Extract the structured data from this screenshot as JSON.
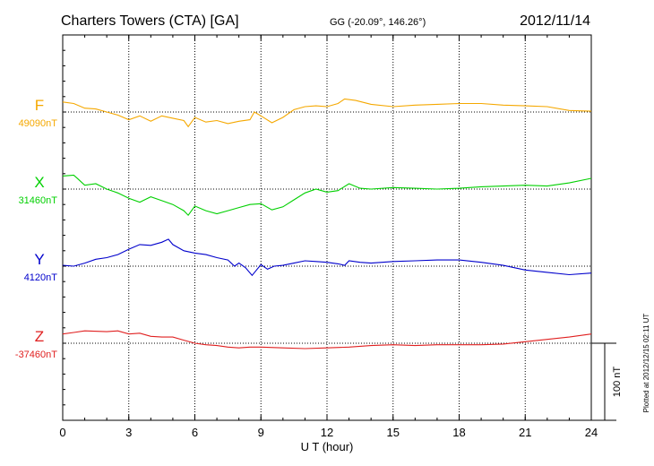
{
  "header": {
    "station": "Charters Towers (CTA)  [GA]",
    "coords": "GG (-20.09°, 146.26°)",
    "date": "2012/11/14"
  },
  "plotted_note": "Plotted at 2012/12/15 02:11  UT",
  "scale_label": "100 nT",
  "chart_data": {
    "type": "line",
    "xlabel": "U T (hour)",
    "xlim": [
      0,
      24
    ],
    "x_ticks": [
      "0",
      "3",
      "6",
      "9",
      "12",
      "15",
      "18",
      "21",
      "24"
    ],
    "scale_bar_nT": 100,
    "series": [
      {
        "name": "F",
        "baseline_label": "49090nT",
        "color": "#f5a800",
        "baseline_nT": 49090,
        "points": [
          [
            0,
            49103
          ],
          [
            0.5,
            49101
          ],
          [
            1,
            49095
          ],
          [
            1.5,
            49094
          ],
          [
            2,
            49090
          ],
          [
            2.5,
            49086
          ],
          [
            3,
            49080
          ],
          [
            3.5,
            49085
          ],
          [
            4,
            49078
          ],
          [
            4.5,
            49085
          ],
          [
            5,
            49082
          ],
          [
            5.5,
            49079
          ],
          [
            5.7,
            49071
          ],
          [
            6,
            49083
          ],
          [
            6.5,
            49077
          ],
          [
            7,
            49079
          ],
          [
            7.5,
            49075
          ],
          [
            8,
            49078
          ],
          [
            8.5,
            49080
          ],
          [
            8.7,
            49090
          ],
          [
            9,
            49085
          ],
          [
            9.5,
            49076
          ],
          [
            10,
            49083
          ],
          [
            10.5,
            49093
          ],
          [
            11,
            49097
          ],
          [
            11.5,
            49098
          ],
          [
            12,
            49097
          ],
          [
            12.5,
            49101
          ],
          [
            12.8,
            49107
          ],
          [
            13.3,
            49105
          ],
          [
            14,
            49100
          ],
          [
            15,
            49097
          ],
          [
            16,
            49099
          ],
          [
            17,
            49100
          ],
          [
            18,
            49101
          ],
          [
            19,
            49101
          ],
          [
            20,
            49099
          ],
          [
            21,
            49098
          ],
          [
            22,
            49097
          ],
          [
            23,
            49092
          ],
          [
            24,
            49091
          ]
        ]
      },
      {
        "name": "X",
        "baseline_label": "31460nT",
        "color": "#00d000",
        "baseline_nT": 31460,
        "points": [
          [
            0,
            31477
          ],
          [
            0.5,
            31478
          ],
          [
            0.7,
            31473
          ],
          [
            1,
            31465
          ],
          [
            1.5,
            31467
          ],
          [
            2,
            31460
          ],
          [
            2.5,
            31455
          ],
          [
            3,
            31448
          ],
          [
            3.5,
            31443
          ],
          [
            4,
            31450
          ],
          [
            4.5,
            31445
          ],
          [
            5,
            31440
          ],
          [
            5.5,
            31432
          ],
          [
            5.7,
            31426
          ],
          [
            6,
            31438
          ],
          [
            6.5,
            31432
          ],
          [
            7,
            31428
          ],
          [
            7.5,
            31432
          ],
          [
            8,
            31436
          ],
          [
            8.5,
            31440
          ],
          [
            9,
            31441
          ],
          [
            9.5,
            31433
          ],
          [
            10,
            31437
          ],
          [
            10.5,
            31446
          ],
          [
            11,
            31455
          ],
          [
            11.5,
            31460
          ],
          [
            12,
            31456
          ],
          [
            12.5,
            31458
          ],
          [
            13,
            31467
          ],
          [
            13.5,
            31461
          ],
          [
            14,
            31460
          ],
          [
            15,
            31462
          ],
          [
            16,
            31461
          ],
          [
            17,
            31460
          ],
          [
            18,
            31461
          ],
          [
            19,
            31463
          ],
          [
            20,
            31464
          ],
          [
            21,
            31465
          ],
          [
            22,
            31464
          ],
          [
            23,
            31468
          ],
          [
            24,
            31474
          ]
        ]
      },
      {
        "name": "Y",
        "baseline_label": "4120nT",
        "color": "#0000cc",
        "baseline_nT": 4120,
        "points": [
          [
            0,
            4121
          ],
          [
            0.5,
            4120
          ],
          [
            1,
            4124
          ],
          [
            1.5,
            4129
          ],
          [
            2,
            4131
          ],
          [
            2.5,
            4135
          ],
          [
            3,
            4142
          ],
          [
            3.5,
            4148
          ],
          [
            4,
            4147
          ],
          [
            4.5,
            4151
          ],
          [
            4.8,
            4155
          ],
          [
            5,
            4148
          ],
          [
            5.5,
            4140
          ],
          [
            6,
            4137
          ],
          [
            6.5,
            4135
          ],
          [
            7,
            4131
          ],
          [
            7.5,
            4128
          ],
          [
            7.8,
            4120
          ],
          [
            8,
            4124
          ],
          [
            8.3,
            4118
          ],
          [
            8.6,
            4108
          ],
          [
            8.8,
            4115
          ],
          [
            9,
            4122
          ],
          [
            9.3,
            4116
          ],
          [
            9.6,
            4120
          ],
          [
            10,
            4121
          ],
          [
            10.5,
            4124
          ],
          [
            11,
            4127
          ],
          [
            11.5,
            4126
          ],
          [
            12,
            4125
          ],
          [
            12.5,
            4123
          ],
          [
            12.8,
            4121
          ],
          [
            13,
            4127
          ],
          [
            13.5,
            4125
          ],
          [
            14,
            4124
          ],
          [
            15,
            4126
          ],
          [
            16,
            4127
          ],
          [
            17,
            4128
          ],
          [
            18,
            4128
          ],
          [
            19,
            4125
          ],
          [
            20,
            4121
          ],
          [
            21,
            4115
          ],
          [
            22,
            4112
          ],
          [
            23,
            4109
          ],
          [
            24,
            4111
          ]
        ]
      },
      {
        "name": "Z",
        "baseline_label": "-37460nT",
        "color": "#e02020",
        "baseline_nT": -37460,
        "points": [
          [
            0,
            -37448
          ],
          [
            0.5,
            -37446
          ],
          [
            1,
            -37444
          ],
          [
            2,
            -37445
          ],
          [
            2.5,
            -37444
          ],
          [
            3,
            -37448
          ],
          [
            3.5,
            -37447
          ],
          [
            4,
            -37451
          ],
          [
            4.5,
            -37452
          ],
          [
            5,
            -37452
          ],
          [
            5.5,
            -37456
          ],
          [
            6,
            -37460
          ],
          [
            6.5,
            -37462
          ],
          [
            7,
            -37463
          ],
          [
            7.5,
            -37465
          ],
          [
            8,
            -37466
          ],
          [
            8.5,
            -37465
          ],
          [
            9,
            -37465
          ],
          [
            10,
            -37466
          ],
          [
            11,
            -37467
          ],
          [
            12,
            -37466
          ],
          [
            13,
            -37465
          ],
          [
            14,
            -37463
          ],
          [
            15,
            -37462
          ],
          [
            16,
            -37463
          ],
          [
            17,
            -37462
          ],
          [
            18,
            -37462
          ],
          [
            19,
            -37462
          ],
          [
            20,
            -37461
          ],
          [
            21,
            -37458
          ],
          [
            22,
            -37455
          ],
          [
            23,
            -37452
          ],
          [
            24,
            -37448
          ]
        ]
      }
    ]
  }
}
